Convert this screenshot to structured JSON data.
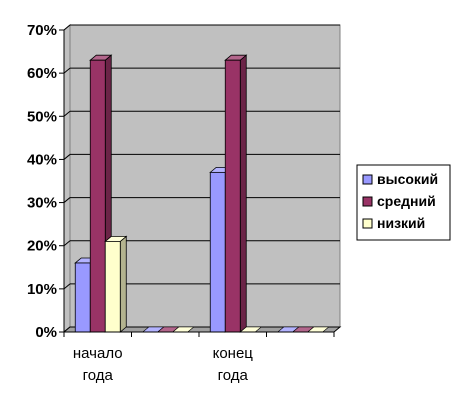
{
  "chart_data": {
    "type": "bar",
    "categories": [
      [
        "начало",
        "года"
      ],
      [
        "",
        ""
      ],
      [
        "конец",
        "года"
      ],
      [
        "",
        ""
      ]
    ],
    "series": [
      {
        "name": "высокий",
        "values": [
          16,
          0,
          37,
          0
        ],
        "color": "#9999ff"
      },
      {
        "name": "средний",
        "values": [
          63,
          0,
          63,
          0
        ],
        "color": "#993366"
      },
      {
        "name": "низкий",
        "values": [
          21,
          0,
          0,
          0
        ],
        "color": "#ffffcc"
      }
    ],
    "y_ticks": [
      "0%",
      "10%",
      "20%",
      "30%",
      "40%",
      "50%",
      "60%",
      "70%"
    ],
    "ylim": [
      0,
      70
    ],
    "y_step": 10,
    "grid": true,
    "legend_position": "right",
    "plot_background": "#c0c0c0"
  }
}
